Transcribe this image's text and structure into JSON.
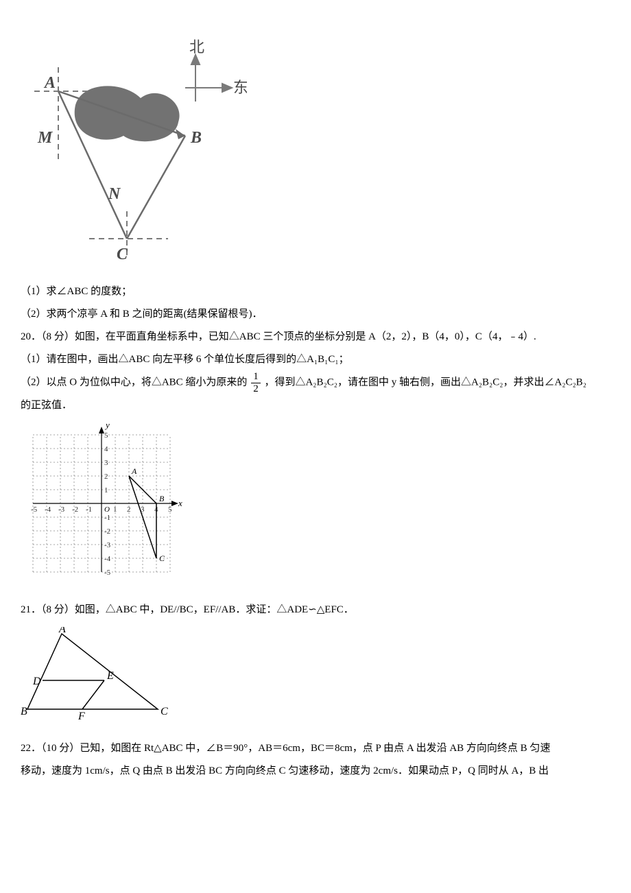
{
  "fig1": {
    "compass": {
      "north_label": "北",
      "east_label": "东",
      "color": "#7a7a7a",
      "font_size": 22
    },
    "labels": {
      "A": "A",
      "B": "B",
      "C": "C",
      "M": "M",
      "N": "N"
    },
    "points": {
      "A": [
        55,
        105
      ],
      "B": [
        240,
        170
      ],
      "C": [
        155,
        320
      ],
      "M": [
        48,
        170
      ],
      "N": [
        140,
        258
      ]
    },
    "line_color": "#6b6b6b",
    "dash_color": "#7a7a7a",
    "blob_color": "#595959",
    "font_size_labels": 24,
    "font_color": "#4a4a4a"
  },
  "q_fig1": {
    "part1": "（1）求∠ABC 的度数；",
    "part2": "（2）求两个凉亭 A 和 B 之间的距离(结果保留根号)．"
  },
  "q20": {
    "stem": "20．（8 分）如图，在平面直角坐标系中，已知△ABC 三个顶点的坐标分别是 A（2，2），B（4，0），C（4，﹣4）.",
    "part1": "（1）请在图中，画出△ABC 向左平移 6 个单位长度后得到的△A₁B₁C₁；",
    "part2_prefix": "（2）以点 O 为位似中心，将△ABC 缩小为原来的",
    "frac_num": "1",
    "frac_den": "2",
    "part2_suffix": "，得到△A₂B₂C₂，请在图中 y 轴右侧，画出△A₂B₂C₂，并求出∠A₂C₂B₂",
    "part2_line2": "的正弦值．"
  },
  "grid": {
    "range": [
      -5,
      5
    ],
    "cell": 20,
    "origin_label": "O",
    "x_label": "x",
    "y_label": "y",
    "grid_color": "#888888",
    "axis_color": "#000000",
    "tick_font_size": 11,
    "label_A": "A",
    "label_B": "B",
    "label_C": "C",
    "pt_A": [
      2,
      2
    ],
    "pt_B": [
      4,
      0
    ],
    "pt_C": [
      4,
      -4
    ],
    "triangle_color": "#000000"
  },
  "q21": {
    "stem": "21．（8 分）如图，△ABC 中，DE//BC，EF//AB．求证：△ADE∽△EFC．"
  },
  "fig3": {
    "A": [
      60,
      10
    ],
    "B": [
      10,
      120
    ],
    "C": [
      200,
      120
    ],
    "D": [
      32,
      78
    ],
    "E": [
      122,
      78
    ],
    "F": [
      90,
      120
    ],
    "labels": {
      "A": "A",
      "B": "B",
      "C": "C",
      "D": "D",
      "E": "E",
      "F": "F"
    },
    "line_color": "#000000",
    "font_size": 16
  },
  "q22": {
    "stem_line1": "22．（10 分）已知，如图在 Rt△ABC 中，∠B＝90°，AB＝6cm，BC＝8cm，点 P 由点 A 出发沿 AB 方向向终点 B 匀速",
    "stem_line2": "移动，速度为 1cm/s，点 Q 由点 B 出发沿 BC 方向向终点 C 匀速移动，速度为 2cm/s．如果动点 P，Q 同时从 A，B 出"
  },
  "colors": {
    "text": "#000000",
    "gray": "#7a7a7a"
  }
}
